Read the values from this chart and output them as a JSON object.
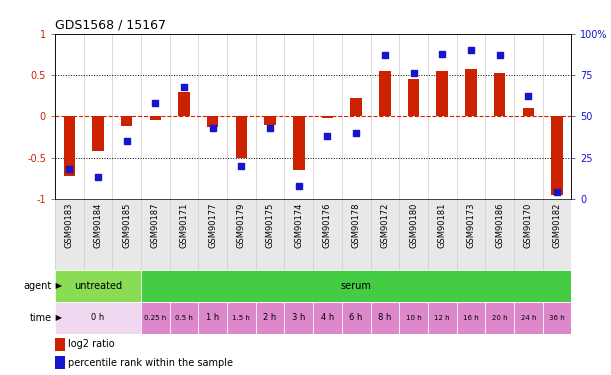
{
  "title": "GDS1568 / 15167",
  "samples": [
    "GSM90183",
    "GSM90184",
    "GSM90185",
    "GSM90187",
    "GSM90171",
    "GSM90177",
    "GSM90179",
    "GSM90175",
    "GSM90174",
    "GSM90176",
    "GSM90178",
    "GSM90172",
    "GSM90180",
    "GSM90181",
    "GSM90173",
    "GSM90186",
    "GSM90170",
    "GSM90182"
  ],
  "log2_ratio": [
    -0.72,
    -0.42,
    -0.12,
    -0.05,
    0.3,
    -0.13,
    -0.5,
    -0.1,
    -0.65,
    -0.02,
    0.22,
    0.55,
    0.45,
    0.55,
    0.57,
    0.52,
    0.1,
    -0.95
  ],
  "percentile": [
    18,
    13,
    35,
    58,
    68,
    43,
    20,
    43,
    8,
    38,
    40,
    87,
    76,
    88,
    90,
    87,
    62,
    4
  ],
  "ylim_left": [
    -1,
    1
  ],
  "ylim_right": [
    0,
    100
  ],
  "yticks_left": [
    -1,
    -0.5,
    0,
    0.5,
    1
  ],
  "yticks_right": [
    0,
    25,
    50,
    75,
    100
  ],
  "ytick_labels_left": [
    "-1",
    "-0.5",
    "0",
    "0.5",
    "1"
  ],
  "ytick_labels_right": [
    "0",
    "25",
    "50",
    "75",
    "100%"
  ],
  "hline_dotted": [
    -0.5,
    0.5
  ],
  "hline_zero_color": "#cc2200",
  "bar_color": "#cc2200",
  "scatter_color": "#1515cc",
  "agent_untreated_color": "#88dd55",
  "agent_serum_color": "#44cc44",
  "agent_untreated_label": "untreated",
  "agent_serum_label": "serum",
  "agent_untreated_count": 3,
  "time_0h_color": "#f0d8f0",
  "time_serum_color": "#dd88cc",
  "xlabel_color_left": "#cc2200",
  "xlabel_color_right": "#1515cc",
  "bg_color": "#ffffff",
  "grid_line_color": "#cccccc",
  "legend_red_label": "log2 ratio",
  "legend_blue_label": "percentile rank within the sample",
  "time_groups": [
    [
      0,
      3,
      "0 h"
    ],
    [
      3,
      1,
      "0.25 h"
    ],
    [
      4,
      1,
      "0.5 h"
    ],
    [
      5,
      1,
      "1 h"
    ],
    [
      6,
      1,
      "1.5 h"
    ],
    [
      7,
      1,
      "2 h"
    ],
    [
      8,
      1,
      "3 h"
    ],
    [
      9,
      1,
      "4 h"
    ],
    [
      10,
      1,
      "6 h"
    ],
    [
      11,
      1,
      "8 h"
    ],
    [
      12,
      1,
      "10 h"
    ],
    [
      13,
      1,
      "12 h"
    ],
    [
      14,
      1,
      "16 h"
    ],
    [
      15,
      1,
      "20 h"
    ],
    [
      16,
      1,
      "24 h"
    ],
    [
      17,
      1,
      "36 h"
    ]
  ]
}
